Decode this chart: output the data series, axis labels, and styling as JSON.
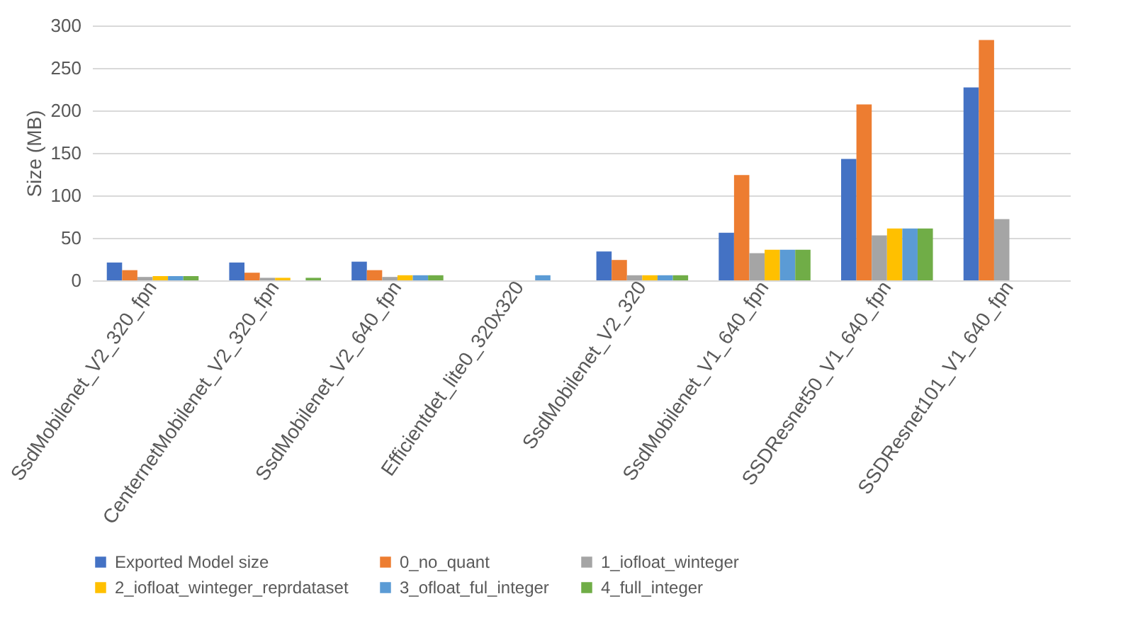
{
  "chart_data": {
    "type": "bar",
    "ylabel": "Size (MB)",
    "categories": [
      "SsdMobilenet_V2_320_fpn",
      "CenternetMobilenet_V2_320_fpn",
      "SsdMobilenet_V2_640_fpn",
      "Efficientdet_lite0_320x320",
      "SsdMobilenet_V2_320",
      "SsdMobilenet_V1_640_fpn",
      "SSDResnet50_V1_640_fpn",
      "SSDResnet101_V1_640_fpn"
    ],
    "series": [
      {
        "name": "Exported Model size",
        "color": "#4472c4",
        "values": [
          21,
          21,
          22,
          null,
          34,
          56,
          143,
          227
        ]
      },
      {
        "name": "0_no_quant",
        "color": "#ed7d31",
        "values": [
          12,
          9,
          12,
          null,
          24,
          124,
          207,
          283
        ]
      },
      {
        "name": "1_iofloat_winteger",
        "color": "#a5a5a5",
        "values": [
          4,
          3,
          4,
          null,
          6,
          32,
          53,
          72
        ]
      },
      {
        "name": "2_iofloat_winteger_reprdataset",
        "color": "#ffc000",
        "values": [
          5,
          3,
          6,
          null,
          6,
          36,
          61,
          null
        ]
      },
      {
        "name": "3_ofloat_ful_integer",
        "color": "#5b9bd5",
        "values": [
          5,
          null,
          6,
          6,
          6,
          36,
          61,
          null
        ]
      },
      {
        "name": "4_full_integer",
        "color": "#70ad47",
        "values": [
          5,
          3,
          6,
          null,
          6,
          36,
          61,
          null
        ]
      }
    ],
    "ylim": [
      0,
      300
    ],
    "yticks": [
      0,
      50,
      100,
      150,
      200,
      250,
      300
    ],
    "grid": "y",
    "legend": "bottom"
  }
}
